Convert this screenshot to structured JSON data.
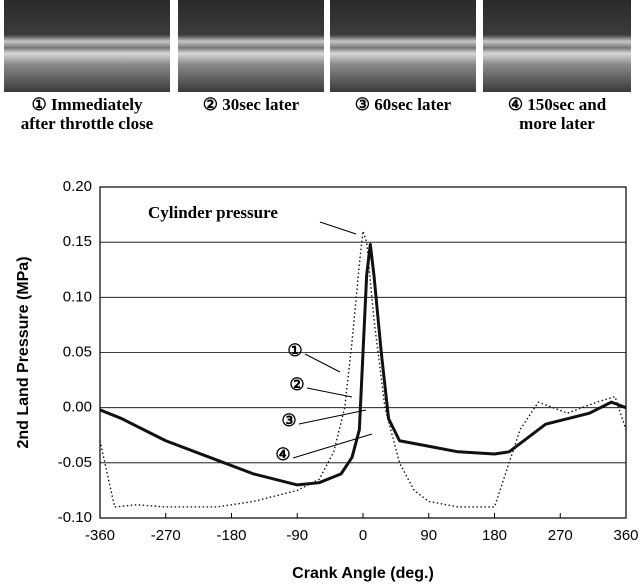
{
  "photos": [
    {
      "lines": [
        "① Immediately",
        "after throttle close"
      ]
    },
    {
      "lines": [
        "② 30sec later"
      ]
    },
    {
      "lines": [
        "③ 60sec later"
      ]
    },
    {
      "lines": [
        "④ 150sec and",
        "more later"
      ]
    }
  ],
  "chart_data": {
    "type": "line",
    "xlabel": "Crank Angle (deg.)",
    "ylabel": "2nd Land Pressure (MPa)",
    "xlim": [
      -360,
      360
    ],
    "xticks": [
      -360,
      -270,
      -180,
      -90,
      0,
      90,
      180,
      270,
      360
    ],
    "ylim": [
      -0.1,
      0.2
    ],
    "yticks": [
      {
        "value": 0.2,
        "label": "0.20"
      },
      0.15,
      {
        "value": 0.1,
        "label": "0.10"
      },
      0.05,
      {
        "value": 0,
        "label": "0.00"
      },
      -0.05,
      {
        "value": -0.1,
        "label": "-0.10"
      }
    ],
    "grid": true,
    "series": [
      {
        "color": "#111111",
        "style": "solid",
        "x": [
          -360,
          -330,
          -270,
          -210,
          -150,
          -90,
          -60,
          -30,
          -15,
          -5,
          0,
          5,
          10,
          15,
          25,
          35,
          50,
          90,
          130,
          180,
          200,
          220,
          250,
          280,
          310,
          340,
          360
        ],
        "values": [
          -0.002,
          -0.01,
          -0.03,
          -0.045,
          -0.06,
          -0.07,
          -0.068,
          -0.06,
          -0.045,
          -0.02,
          0.05,
          0.12,
          0.148,
          0.12,
          0.05,
          -0.01,
          -0.03,
          -0.035,
          -0.04,
          -0.042,
          -0.04,
          -0.03,
          -0.015,
          -0.01,
          -0.005,
          0.005,
          0.0
        ]
      },
      {
        "name": "Cylinder pressure",
        "color": "#111111",
        "style": "dotted",
        "x": [
          -360,
          -350,
          -340,
          -310,
          -270,
          -200,
          -150,
          -90,
          -60,
          -40,
          -25,
          -15,
          -5,
          0,
          5,
          15,
          30,
          50,
          70,
          90,
          130,
          180,
          200,
          215,
          240,
          260,
          280,
          320,
          345,
          360
        ],
        "values": [
          -0.03,
          -0.06,
          -0.09,
          -0.088,
          -0.09,
          -0.09,
          -0.085,
          -0.075,
          -0.065,
          -0.04,
          0.0,
          0.06,
          0.13,
          0.16,
          0.15,
          0.08,
          0.0,
          -0.05,
          -0.075,
          -0.085,
          -0.09,
          -0.09,
          -0.05,
          -0.02,
          0.005,
          0.0,
          -0.005,
          0.005,
          0.01,
          -0.02
        ]
      }
    ],
    "annotations": [
      "①",
      "②",
      "③",
      "④"
    ]
  }
}
